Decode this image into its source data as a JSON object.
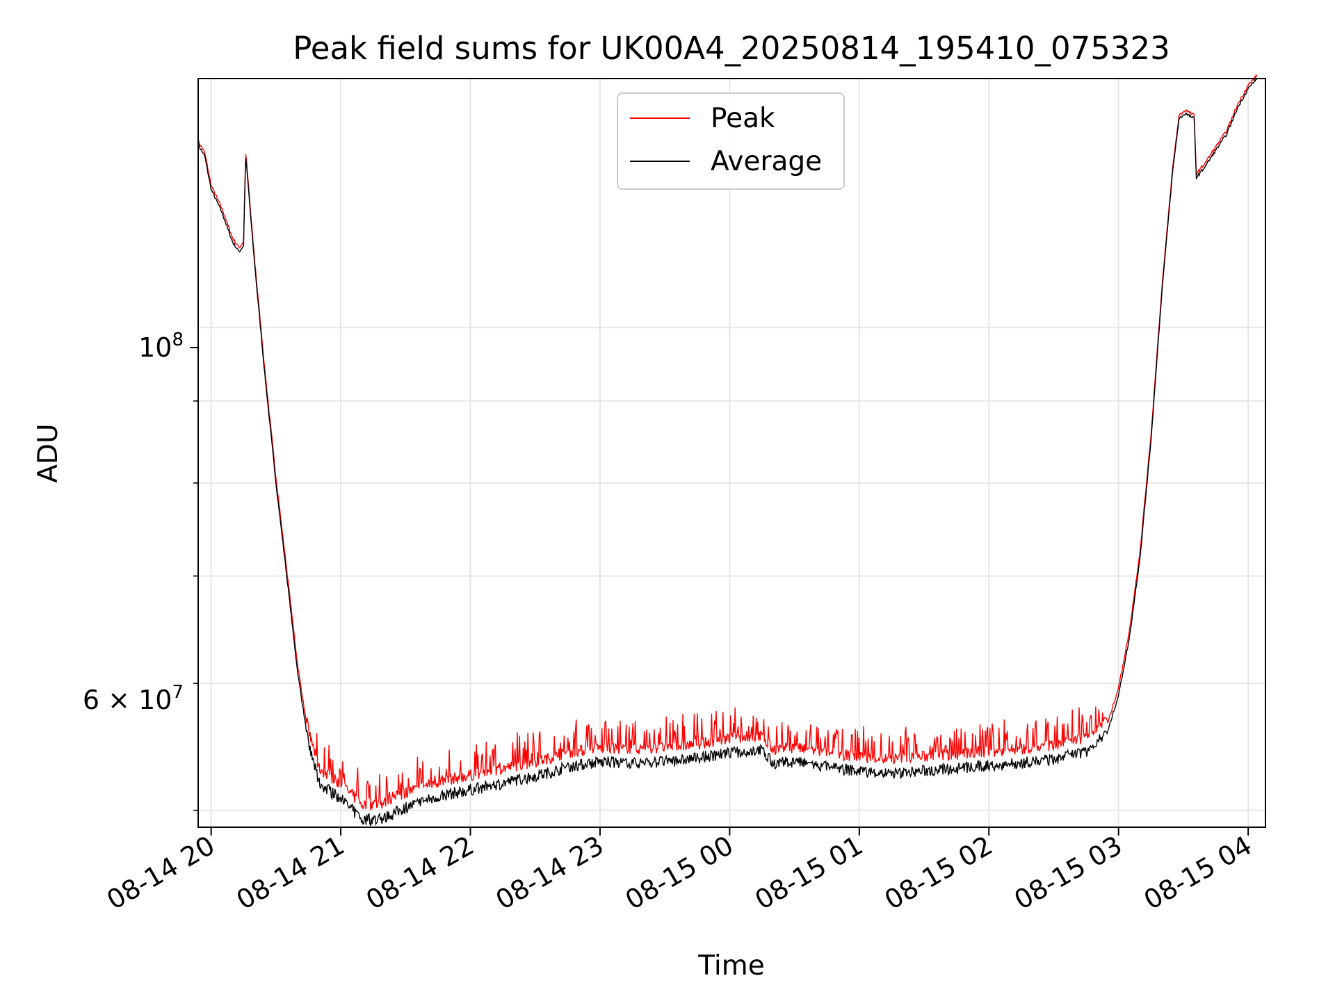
{
  "chart_data": {
    "type": "line",
    "title": "Peak field sums for UK00A4_20250814_195410_075323",
    "xlabel": "Time",
    "ylabel": "ADU",
    "yscale": "log",
    "ylim": [
      48800000,
      143000000
    ],
    "xlim": [
      "08-14 19:54",
      "08-15 04:08"
    ],
    "grid": true,
    "legend_position": "top-center",
    "x_ticks": [
      "08-14 20",
      "08-14 21",
      "08-14 22",
      "08-14 23",
      "08-15 00",
      "08-15 01",
      "08-15 02",
      "08-15 03",
      "08-15 04"
    ],
    "y_tick_labels": {
      "major": {
        "value": 100000000,
        "base": "10",
        "exp": "8"
      },
      "minor": {
        "value": 60000000,
        "mant": "6",
        "base": "10",
        "exp": "7"
      }
    },
    "y_minor_ticks": [
      50000000,
      60000000,
      70000000,
      80000000,
      90000000
    ],
    "series": [
      {
        "name": "Peak",
        "color": "#ff0000"
      },
      {
        "name": "Average",
        "color": "#000000"
      }
    ],
    "average_points": [
      [
        "08-14 19:54",
        130000000
      ],
      [
        "08-14 19:57",
        128000000
      ],
      [
        "08-14 20:00",
        122000000
      ],
      [
        "08-14 20:05",
        118000000
      ],
      [
        "08-14 20:10",
        113000000
      ],
      [
        "08-14 20:13",
        111500000
      ],
      [
        "08-14 20:15",
        112500000
      ],
      [
        "08-14 20:16",
        128000000
      ],
      [
        "08-14 20:20",
        110000000
      ],
      [
        "08-14 20:25",
        93000000
      ],
      [
        "08-14 20:30",
        80000000
      ],
      [
        "08-14 20:35",
        70000000
      ],
      [
        "08-14 20:40",
        61000000
      ],
      [
        "08-14 20:45",
        55000000
      ],
      [
        "08-14 20:50",
        52000000
      ],
      [
        "08-14 21:00",
        50800000
      ],
      [
        "08-14 21:10",
        49300000
      ],
      [
        "08-14 21:20",
        49400000
      ],
      [
        "08-14 21:30",
        50200000
      ],
      [
        "08-14 21:45",
        51000000
      ],
      [
        "08-14 22:00",
        51500000
      ],
      [
        "08-14 22:15",
        52000000
      ],
      [
        "08-14 22:30",
        52500000
      ],
      [
        "08-14 22:45",
        53200000
      ],
      [
        "08-14 23:00",
        53600000
      ],
      [
        "08-14 23:15",
        53500000
      ],
      [
        "08-14 23:30",
        53600000
      ],
      [
        "08-14 23:45",
        53900000
      ],
      [
        "08-15 00:00",
        54300000
      ],
      [
        "08-15 00:15",
        54500000
      ],
      [
        "08-15 00:20",
        53500000
      ],
      [
        "08-15 00:30",
        53600000
      ],
      [
        "08-15 00:45",
        53200000
      ],
      [
        "08-15 01:00",
        52900000
      ],
      [
        "08-15 01:15",
        52700000
      ],
      [
        "08-15 01:30",
        52900000
      ],
      [
        "08-15 01:45",
        53100000
      ],
      [
        "08-15 02:00",
        53300000
      ],
      [
        "08-15 02:15",
        53500000
      ],
      [
        "08-15 02:30",
        53800000
      ],
      [
        "08-15 02:45",
        54400000
      ],
      [
        "08-15 02:55",
        56000000
      ],
      [
        "08-15 03:00",
        59000000
      ],
      [
        "08-15 03:05",
        64000000
      ],
      [
        "08-15 03:10",
        72000000
      ],
      [
        "08-15 03:15",
        85000000
      ],
      [
        "08-15 03:20",
        105000000
      ],
      [
        "08-15 03:25",
        125000000
      ],
      [
        "08-15 03:28",
        135000000
      ],
      [
        "08-15 03:31",
        136000000
      ],
      [
        "08-15 03:35",
        135000000
      ],
      [
        "08-15 03:36",
        124000000
      ],
      [
        "08-15 03:40",
        126000000
      ],
      [
        "08-15 03:45",
        129000000
      ],
      [
        "08-15 03:50",
        132000000
      ],
      [
        "08-15 03:55",
        137000000
      ],
      [
        "08-15 04:00",
        141000000
      ],
      [
        "08-15 04:04",
        143000000
      ]
    ],
    "peak_offset_approx": 1100000
  }
}
